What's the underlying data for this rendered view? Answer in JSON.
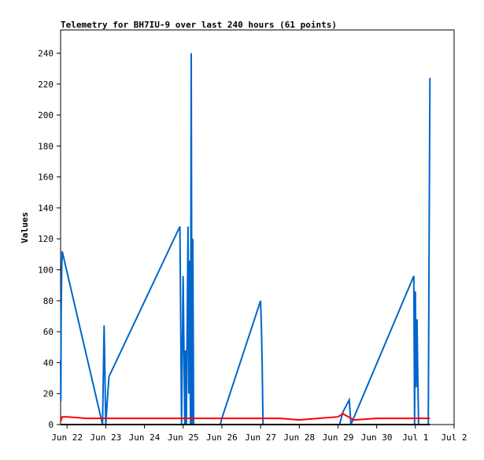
{
  "chart_data": {
    "type": "line",
    "title": "Telemetry for BH7IU-9 over last 240 hours (61 points)",
    "xlabel": "",
    "ylabel": "Values",
    "ylim": [
      0,
      255
    ],
    "yticks": [
      0,
      20,
      40,
      60,
      80,
      100,
      120,
      140,
      160,
      180,
      200,
      220,
      240
    ],
    "xlim": [
      "2024-06-21T20:00",
      "2024-07-02T00:00"
    ],
    "xticks": [
      {
        "label": "Jun 22",
        "at": "2024-06-22T00:00"
      },
      {
        "label": "Jun 23",
        "at": "2024-06-23T00:00"
      },
      {
        "label": "Jun 24",
        "at": "2024-06-24T00:00"
      },
      {
        "label": "Jun 25",
        "at": "2024-06-25T00:00"
      },
      {
        "label": "Jun 26",
        "at": "2024-06-26T00:00"
      },
      {
        "label": "Jun 27",
        "at": "2024-06-27T00:00"
      },
      {
        "label": "Jun 28",
        "at": "2024-06-28T00:00"
      },
      {
        "label": "Jun 29",
        "at": "2024-06-29T00:00"
      },
      {
        "label": "Jun 30",
        "at": "2024-06-30T00:00"
      },
      {
        "label": "Jul 1",
        "at": "2024-07-01T00:00"
      },
      {
        "label": "Jul 2",
        "at": "2024-07-02T00:00"
      }
    ],
    "grid": false,
    "legend": "none",
    "series": [
      {
        "color": "#0066cc",
        "points": [
          [
            "2024-06-21T20:00",
            42
          ],
          [
            "2024-06-21T20:10",
            15
          ],
          [
            "2024-06-21T20:20",
            70
          ],
          [
            "2024-06-21T20:40",
            100
          ],
          [
            "2024-06-21T21:00",
            112
          ],
          [
            "2024-06-22T22:00",
            0
          ],
          [
            "2024-06-22T23:00",
            64
          ],
          [
            "2024-06-23T00:00",
            0
          ],
          [
            "2024-06-23T01:00",
            16
          ],
          [
            "2024-06-23T02:00",
            31
          ],
          [
            "2024-06-24T22:00",
            128
          ],
          [
            "2024-06-24T23:00",
            0
          ],
          [
            "2024-06-25T00:00",
            96
          ],
          [
            "2024-06-25T01:00",
            0
          ],
          [
            "2024-06-25T01:30",
            48
          ],
          [
            "2024-06-25T02:00",
            0
          ],
          [
            "2024-06-25T03:00",
            128
          ],
          [
            "2024-06-25T03:30",
            20
          ],
          [
            "2024-06-25T04:00",
            106
          ],
          [
            "2024-06-25T04:30",
            0
          ],
          [
            "2024-06-25T05:00",
            240
          ],
          [
            "2024-06-25T05:30",
            0
          ],
          [
            "2024-06-25T06:00",
            120
          ],
          [
            "2024-06-25T06:30",
            0
          ],
          [
            "2024-06-25T23:00",
            0
          ],
          [
            "2024-06-26T00:00",
            4
          ],
          [
            "2024-06-27T00:00",
            80
          ],
          [
            "2024-06-27T00:30",
            64
          ],
          [
            "2024-06-27T01:00",
            40
          ],
          [
            "2024-06-27T01:30",
            0
          ],
          [
            "2024-06-29T01:00",
            0
          ],
          [
            "2024-06-29T03:00",
            8
          ],
          [
            "2024-06-29T05:00",
            12
          ],
          [
            "2024-06-29T07:00",
            16
          ],
          [
            "2024-06-29T08:00",
            0
          ],
          [
            "2024-06-30T23:00",
            96
          ],
          [
            "2024-06-30T23:30",
            0
          ],
          [
            "2024-07-01T00:00",
            86
          ],
          [
            "2024-07-01T00:30",
            24
          ],
          [
            "2024-07-01T01:00",
            68
          ],
          [
            "2024-07-01T01:30",
            30
          ],
          [
            "2024-07-01T02:00",
            0
          ],
          [
            "2024-07-01T08:00",
            0
          ],
          [
            "2024-07-01T08:30",
            112
          ],
          [
            "2024-07-01T09:00",
            224
          ]
        ]
      },
      {
        "color": "#ff0000",
        "points": [
          [
            "2024-06-21T20:00",
            2
          ],
          [
            "2024-06-21T21:00",
            5
          ],
          [
            "2024-06-22T00:00",
            5
          ],
          [
            "2024-06-22T12:00",
            4
          ],
          [
            "2024-06-23T00:00",
            4
          ],
          [
            "2024-06-24T00:00",
            4
          ],
          [
            "2024-06-25T00:00",
            4
          ],
          [
            "2024-06-26T00:00",
            4
          ],
          [
            "2024-06-27T00:00",
            4
          ],
          [
            "2024-06-27T12:00",
            4
          ],
          [
            "2024-06-28T00:00",
            3
          ],
          [
            "2024-06-28T12:00",
            4
          ],
          [
            "2024-06-29T00:00",
            5
          ],
          [
            "2024-06-29T03:00",
            7
          ],
          [
            "2024-06-29T08:00",
            4
          ],
          [
            "2024-06-29T10:00",
            3
          ],
          [
            "2024-06-30T00:00",
            4
          ],
          [
            "2024-07-01T00:00",
            4
          ],
          [
            "2024-07-01T09:00",
            4
          ]
        ]
      },
      {
        "color": "#000000",
        "points": [
          [
            "2024-06-21T20:00",
            0
          ],
          [
            "2024-07-01T09:00",
            0
          ]
        ]
      }
    ]
  }
}
